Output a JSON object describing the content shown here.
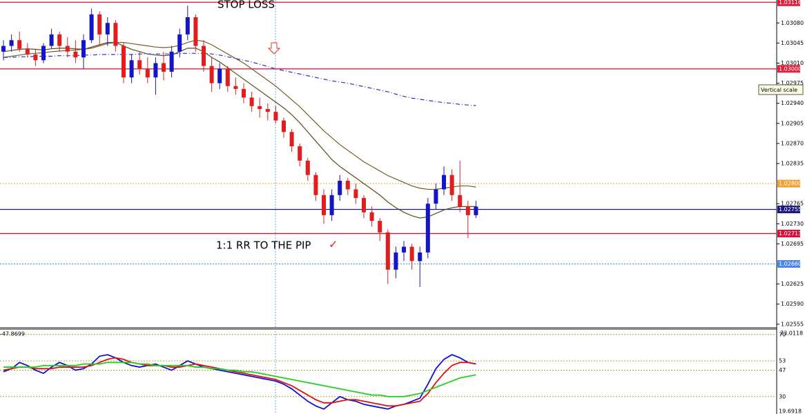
{
  "chart_data": [
    {
      "type": "candlestick",
      "open": [
        1.0303,
        1.0304,
        1.0305,
        1.03035,
        1.03025,
        1.03015,
        1.0304,
        1.0306,
        1.0304,
        1.0303,
        1.0302,
        1.0305,
        1.03095,
        1.0306,
        1.0308,
        1.0304,
        1.02985,
        1.03015,
        1.03,
        1.02985,
        1.0301,
        1.02995,
        1.0303,
        1.0306,
        1.0309,
        1.0304,
        1.03005,
        1.02975,
        1.03,
        1.0297,
        1.02965,
        1.0295,
        1.02935,
        1.0293,
        1.02925,
        1.0291,
        1.0289,
        1.02865,
        1.0284,
        1.02815,
        1.0278,
        1.02745,
        1.0278,
        1.02805,
        1.0279,
        1.02775,
        1.0275,
        1.02735,
        1.02715,
        1.0265,
        1.0268,
        1.0269,
        1.02665,
        1.0268,
        1.02765,
        1.0279,
        1.02815,
        1.0278,
        1.0276,
        1.02745
      ],
      "high": [
        1.0305,
        1.0306,
        1.03065,
        1.03045,
        1.03035,
        1.03045,
        1.0307,
        1.03065,
        1.03055,
        1.0305,
        1.0306,
        1.03105,
        1.031,
        1.0309,
        1.03085,
        1.03045,
        1.03025,
        1.0303,
        1.0302,
        1.0302,
        1.0303,
        1.0304,
        1.0307,
        1.0311,
        1.03095,
        1.0305,
        1.0302,
        1.0301,
        1.03005,
        1.02985,
        1.02975,
        1.0296,
        1.0295,
        1.0294,
        1.02935,
        1.02915,
        1.02895,
        1.0287,
        1.02845,
        1.0282,
        1.0279,
        1.0279,
        1.02815,
        1.0281,
        1.028,
        1.0278,
        1.0276,
        1.0274,
        1.0272,
        1.0269,
        1.027,
        1.02695,
        1.0269,
        1.02775,
        1.028,
        1.0283,
        1.02825,
        1.0284,
        1.0277,
        1.0277
      ],
      "low": [
        1.03015,
        1.0303,
        1.0303,
        1.0302,
        1.03005,
        1.0301,
        1.03035,
        1.0303,
        1.0302,
        1.0301,
        1.03,
        1.03045,
        1.0304,
        1.0304,
        1.0303,
        1.02975,
        1.02975,
        1.0299,
        1.02975,
        1.02955,
        1.0298,
        1.02985,
        1.0302,
        1.0305,
        1.0303,
        1.02995,
        1.0296,
        1.02965,
        1.0296,
        1.02955,
        1.0294,
        1.02925,
        1.02915,
        1.0291,
        1.02905,
        1.0288,
        1.02855,
        1.0283,
        1.02805,
        1.0277,
        1.0273,
        1.02735,
        1.0277,
        1.0278,
        1.02765,
        1.0274,
        1.02725,
        1.027,
        1.02625,
        1.02635,
        1.02665,
        1.0265,
        1.0262,
        1.0267,
        1.02755,
        1.0278,
        1.0277,
        1.0275,
        1.02705,
        1.0274
      ],
      "close": [
        1.0304,
        1.0305,
        1.03035,
        1.03025,
        1.03015,
        1.0304,
        1.0306,
        1.0304,
        1.0303,
        1.0302,
        1.0305,
        1.03095,
        1.0306,
        1.0308,
        1.0304,
        1.02985,
        1.03015,
        1.03,
        1.02985,
        1.0301,
        1.02995,
        1.0303,
        1.0306,
        1.0309,
        1.0304,
        1.03005,
        1.02975,
        1.03,
        1.0297,
        1.02965,
        1.0295,
        1.02935,
        1.0293,
        1.02925,
        1.0291,
        1.0289,
        1.02865,
        1.0284,
        1.02815,
        1.0278,
        1.02745,
        1.0278,
        1.02805,
        1.0279,
        1.02775,
        1.0275,
        1.02735,
        1.02715,
        1.0265,
        1.0268,
        1.0269,
        1.02665,
        1.0268,
        1.02765,
        1.0279,
        1.02815,
        1.0278,
        1.0276,
        1.02745,
        1.0276
      ],
      "up_color": "#1414c8",
      "down_color": "#e01e1e",
      "ylim": [
        1.0255,
        1.0312
      ],
      "yticks": [
        {
          "value": 1.0308,
          "label": "1.03080"
        },
        1.03045,
        {
          "value": 1.0301,
          "label": "1.03010"
        },
        1.02975,
        {
          "value": 1.0294,
          "label": "1.02940"
        },
        1.02905,
        {
          "value": 1.0287,
          "label": "1.02870"
        },
        1.02835,
        1.02765,
        {
          "value": 1.0273,
          "label": "1.02730"
        },
        1.02695,
        1.02625,
        {
          "value": 1.0259,
          "label": "1.02590"
        },
        1.02555
      ],
      "levels": [
        {
          "value": 1.03116,
          "color": "#e0203a",
          "style": "solid"
        },
        {
          "value": 1.03,
          "label": "1.03000",
          "color": "#e0203a",
          "style": "solid"
        },
        {
          "value": 1.028,
          "label": "1.02800",
          "color": "#f0a030",
          "style": "dotted"
        },
        {
          "value": 1.02755,
          "color": "#1a1a80",
          "style": "solid"
        },
        {
          "value": 1.02713,
          "color": "#d8103a",
          "style": "solid"
        },
        {
          "value": 1.0266,
          "label": "1.02660",
          "color": "#4a86e8",
          "style": "dotted"
        }
      ],
      "lines": [
        {
          "color": "#5a4a1a",
          "style": "solid",
          "values": [
            1.0303,
            1.03032,
            1.03034,
            1.03035,
            1.03034,
            1.03033,
            1.03035,
            1.03036,
            1.03036,
            1.03035,
            1.03034,
            1.03038,
            1.03042,
            1.03046,
            1.03046,
            1.0304,
            1.03034,
            1.0303,
            1.03026,
            1.03024,
            1.03023,
            1.03024,
            1.0303,
            1.03036,
            1.03036,
            1.0303,
            1.0302,
            1.03012,
            1.03002,
            1.02992,
            1.02982,
            1.02972,
            1.02962,
            1.02952,
            1.02942,
            1.02932,
            1.0292,
            1.02906,
            1.0289,
            1.02874,
            1.02858,
            1.02842,
            1.0283,
            1.0282,
            1.0281,
            1.028,
            1.0279,
            1.0278,
            1.02768,
            1.02758,
            1.0275,
            1.02744,
            1.0274,
            1.02742,
            1.02748,
            1.02754,
            1.02758,
            1.0276,
            1.0276,
            1.0276
          ]
        },
        {
          "color": "#7a5a2a",
          "style": "solid",
          "values": [
            1.0302,
            1.03022,
            1.03024,
            1.03026,
            1.03027,
            1.03028,
            1.0303,
            1.03031,
            1.03032,
            1.03033,
            1.03034,
            1.03036,
            1.0304,
            1.03044,
            1.03046,
            1.03046,
            1.03044,
            1.03042,
            1.0304,
            1.03038,
            1.03037,
            1.03038,
            1.03041,
            1.03046,
            1.0305,
            1.03048,
            1.03042,
            1.03034,
            1.03026,
            1.03018,
            1.0301,
            1.03,
            1.0299,
            1.0298,
            1.0297,
            1.02958,
            1.02946,
            1.02934,
            1.0292,
            1.02906,
            1.02892,
            1.0288,
            1.02868,
            1.02858,
            1.02848,
            1.02838,
            1.0283,
            1.02822,
            1.02814,
            1.02808,
            1.02802,
            1.02796,
            1.02792,
            1.0279,
            1.0279,
            1.02792,
            1.02794,
            1.02796,
            1.02796,
            1.02794
          ]
        },
        {
          "color": "#3030c0",
          "style": "dashdot",
          "values": [
            1.0302,
            1.0302,
            1.03021,
            1.03021,
            1.03022,
            1.03022,
            1.03022,
            1.03023,
            1.03023,
            1.03023,
            1.03024,
            1.03024,
            1.03025,
            1.03025,
            1.03025,
            1.03025,
            1.03025,
            1.03026,
            1.03026,
            1.03026,
            1.03026,
            1.03026,
            1.03027,
            1.03027,
            1.03027,
            1.03027,
            1.03026,
            1.03024,
            1.03021,
            1.03018,
            1.03015,
            1.03012,
            1.03008,
            1.03004,
            1.03,
            1.02997,
            1.02994,
            1.02991,
            1.02988,
            1.02985,
            1.02982,
            1.02979,
            1.02977,
            1.02975,
            1.02972,
            1.02969,
            1.02966,
            1.02963,
            1.0296,
            1.02956,
            1.02952,
            1.02949,
            1.02947,
            1.02945,
            1.02943,
            1.02941,
            1.0294,
            1.02938,
            1.02937,
            1.02936
          ]
        }
      ],
      "annotations": [
        {
          "text": "STOP LOSS"
        },
        {
          "text": "1:1 RR TO THE PIP",
          "mark": "✓"
        }
      ],
      "tooltip": "Vertical scale"
    },
    {
      "type": "line",
      "label": "-47.8699",
      "ylim": [
        19.6918,
        73.0118
      ],
      "yticks": [
        70,
        53,
        47,
        30
      ],
      "level_color": "#b0a040",
      "series": [
        {
          "color": "#1010d0",
          "values": [
            46,
            48,
            52,
            50,
            47,
            45,
            49,
            52,
            50,
            47,
            48,
            51,
            56,
            57,
            55,
            52,
            50,
            49,
            50,
            51,
            49,
            47,
            50,
            53,
            51,
            49,
            48,
            47,
            46,
            45,
            44,
            43,
            42,
            41,
            40,
            38,
            35,
            31,
            27,
            24,
            22,
            26,
            30,
            28,
            27,
            25,
            24,
            23,
            22,
            24,
            25,
            27,
            29,
            38,
            48,
            54,
            57,
            55,
            52,
            51
          ]
        },
        {
          "color": "#e01010",
          "values": [
            47,
            48,
            49,
            49,
            48,
            48,
            48,
            49,
            49,
            49,
            49,
            50,
            52,
            54,
            55,
            54,
            52,
            51,
            50,
            50,
            50,
            49,
            49,
            50,
            51,
            50,
            49,
            48,
            47,
            46,
            45,
            44,
            43,
            42,
            41,
            39,
            37,
            34,
            31,
            28,
            26,
            26,
            27,
            28,
            28,
            27,
            26,
            25,
            24,
            24,
            25,
            26,
            27,
            32,
            39,
            45,
            50,
            52,
            52,
            51
          ]
        },
        {
          "color": "#20d020",
          "values": [
            49,
            49,
            49,
            49,
            49,
            50,
            50,
            50,
            50,
            50,
            51,
            51,
            51,
            52,
            52,
            52,
            52,
            51,
            51,
            50,
            50,
            50,
            50,
            50,
            49,
            49,
            48,
            48,
            47,
            47,
            46,
            46,
            45,
            44,
            43,
            42,
            41,
            40,
            39,
            38,
            37,
            36,
            35,
            34,
            33,
            32,
            31,
            31,
            30,
            30,
            30,
            31,
            32,
            34,
            36,
            38,
            40,
            42,
            43,
            44
          ]
        }
      ]
    }
  ]
}
